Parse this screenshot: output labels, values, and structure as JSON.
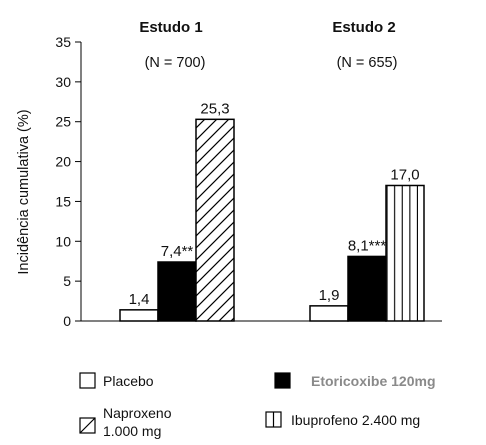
{
  "chart_data": {
    "type": "bar",
    "ylabel": "Incidência cumulativa (%)",
    "ylim": [
      0,
      35
    ],
    "yticks": [
      0,
      5,
      10,
      15,
      20,
      25,
      30,
      35
    ],
    "grid": false,
    "legend_position": "bottom",
    "groups": [
      {
        "title": "Estudo 1",
        "n_label": "(N = 700)",
        "bars": [
          {
            "series": "Placebo",
            "value": 1.4,
            "label": "1,4"
          },
          {
            "series": "Etoricoxibe 120mg",
            "value": 7.4,
            "label": "7,4**"
          },
          {
            "series": "Naproxeno 1.000 mg",
            "value": 25.3,
            "label": "25,3"
          }
        ]
      },
      {
        "title": "Estudo 2",
        "n_label": "(N = 655)",
        "bars": [
          {
            "series": "Placebo",
            "value": 1.9,
            "label": "1,9"
          },
          {
            "series": "Etoricoxibe 120mg",
            "value": 8.1,
            "label": "8,1***"
          },
          {
            "series": "Ibuprofeno 2.400 mg",
            "value": 17.0,
            "label": "17,0"
          }
        ]
      }
    ],
    "series": [
      {
        "name": "Placebo",
        "fill": "white",
        "color": "#ffffff"
      },
      {
        "name": "Etoricoxibe 120mg",
        "fill": "black",
        "color": "#000000"
      },
      {
        "name": "Naproxeno 1.000 mg",
        "fill": "diagonal-hatch",
        "color": "#ffffff"
      },
      {
        "name": "Ibuprofeno 2.400 mg",
        "fill": "vertical-stripes",
        "color": "#ffffff"
      }
    ],
    "legend": {
      "placebo": "Placebo",
      "etoricoxibe": "Etoricoxibe 120mg",
      "naproxeno_line1": "Naproxeno",
      "naproxeno_line2": "1.000 mg",
      "ibuprofeno": "Ibuprofeno 2.400 mg"
    }
  }
}
